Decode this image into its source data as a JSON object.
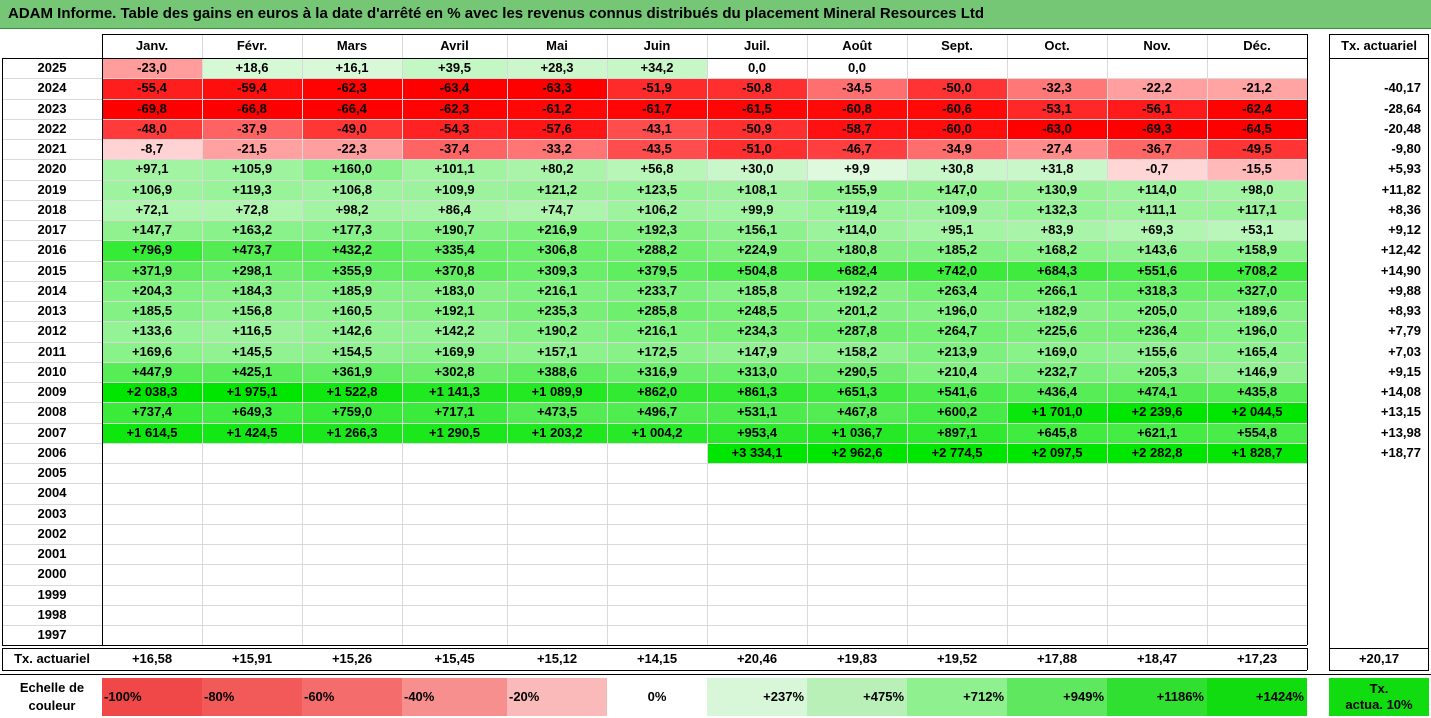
{
  "title": "ADAM Informe. Table des gains en euros à la date d'arrêté en % avec les revenus connus distribués du placement Mineral Resources Ltd",
  "chart_data": {
    "type": "heatmap",
    "title": "ADAM Informe. Table des gains en euros à la date d'arrêté en % avec les revenus connus distribués du placement Mineral Resources Ltd",
    "months": [
      "Janv.",
      "Févr.",
      "Mars",
      "Avril",
      "Mai",
      "Juin",
      "Juil.",
      "Août",
      "Sept.",
      "Oct.",
      "Nov.",
      "Déc."
    ],
    "rate_header": "Tx. actuariel",
    "rows": [
      {
        "year": "2025",
        "values": [
          "-23,0",
          "+18,6",
          "+16,1",
          "+39,5",
          "+28,3",
          "+34,2",
          "0,0",
          "0,0",
          "",
          "",
          "",
          ""
        ],
        "rate": ""
      },
      {
        "year": "2024",
        "values": [
          "-55,4",
          "-59,4",
          "-62,3",
          "-63,4",
          "-63,3",
          "-51,9",
          "-50,8",
          "-34,5",
          "-50,0",
          "-32,3",
          "-22,2",
          "-21,2"
        ],
        "rate": "-40,17"
      },
      {
        "year": "2023",
        "values": [
          "-69,8",
          "-66,8",
          "-66,4",
          "-62,3",
          "-61,2",
          "-61,7",
          "-61,5",
          "-60,8",
          "-60,6",
          "-53,1",
          "-56,1",
          "-62,4"
        ],
        "rate": "-28,64"
      },
      {
        "year": "2022",
        "values": [
          "-48,0",
          "-37,9",
          "-49,0",
          "-54,3",
          "-57,6",
          "-43,1",
          "-50,9",
          "-58,7",
          "-60,0",
          "-63,0",
          "-69,3",
          "-64,5"
        ],
        "rate": "-20,48"
      },
      {
        "year": "2021",
        "values": [
          "-8,7",
          "-21,5",
          "-22,3",
          "-37,4",
          "-33,2",
          "-43,5",
          "-51,0",
          "-46,7",
          "-34,9",
          "-27,4",
          "-36,7",
          "-49,5"
        ],
        "rate": "-9,80"
      },
      {
        "year": "2020",
        "values": [
          "+97,1",
          "+105,9",
          "+160,0",
          "+101,1",
          "+80,2",
          "+56,8",
          "+30,0",
          "+9,9",
          "+30,8",
          "+31,8",
          "-0,7",
          "-15,5"
        ],
        "rate": "+5,93"
      },
      {
        "year": "2019",
        "values": [
          "+106,9",
          "+119,3",
          "+106,8",
          "+109,9",
          "+121,2",
          "+123,5",
          "+108,1",
          "+155,9",
          "+147,0",
          "+130,9",
          "+114,0",
          "+98,0"
        ],
        "rate": "+11,82"
      },
      {
        "year": "2018",
        "values": [
          "+72,1",
          "+72,8",
          "+98,2",
          "+86,4",
          "+74,7",
          "+106,2",
          "+99,9",
          "+119,4",
          "+109,9",
          "+132,3",
          "+111,1",
          "+117,1"
        ],
        "rate": "+8,36"
      },
      {
        "year": "2017",
        "values": [
          "+147,7",
          "+163,2",
          "+177,3",
          "+190,7",
          "+216,9",
          "+192,3",
          "+156,1",
          "+114,0",
          "+95,1",
          "+83,9",
          "+69,3",
          "+53,1"
        ],
        "rate": "+9,12"
      },
      {
        "year": "2016",
        "values": [
          "+796,9",
          "+473,7",
          "+432,2",
          "+335,4",
          "+306,8",
          "+288,2",
          "+224,9",
          "+180,8",
          "+185,2",
          "+168,2",
          "+143,6",
          "+158,9"
        ],
        "rate": "+12,42"
      },
      {
        "year": "2015",
        "values": [
          "+371,9",
          "+298,1",
          "+355,9",
          "+370,8",
          "+309,3",
          "+379,5",
          "+504,8",
          "+682,4",
          "+742,0",
          "+684,3",
          "+551,6",
          "+708,2"
        ],
        "rate": "+14,90"
      },
      {
        "year": "2014",
        "values": [
          "+204,3",
          "+184,3",
          "+185,9",
          "+183,0",
          "+216,1",
          "+233,7",
          "+185,8",
          "+192,2",
          "+263,4",
          "+266,1",
          "+318,3",
          "+327,0"
        ],
        "rate": "+9,88"
      },
      {
        "year": "2013",
        "values": [
          "+185,5",
          "+156,8",
          "+160,5",
          "+192,1",
          "+235,3",
          "+285,8",
          "+248,5",
          "+201,2",
          "+196,0",
          "+182,9",
          "+205,0",
          "+189,6"
        ],
        "rate": "+8,93"
      },
      {
        "year": "2012",
        "values": [
          "+133,6",
          "+116,5",
          "+142,6",
          "+142,2",
          "+190,2",
          "+216,1",
          "+234,3",
          "+287,8",
          "+264,7",
          "+225,6",
          "+236,4",
          "+196,0"
        ],
        "rate": "+7,79"
      },
      {
        "year": "2011",
        "values": [
          "+169,6",
          "+145,5",
          "+154,5",
          "+169,9",
          "+157,1",
          "+172,5",
          "+147,9",
          "+158,2",
          "+213,9",
          "+169,0",
          "+155,6",
          "+165,4"
        ],
        "rate": "+7,03"
      },
      {
        "year": "2010",
        "values": [
          "+447,9",
          "+425,1",
          "+361,9",
          "+302,8",
          "+388,6",
          "+316,9",
          "+313,0",
          "+290,5",
          "+210,4",
          "+232,7",
          "+205,3",
          "+146,9"
        ],
        "rate": "+9,15"
      },
      {
        "year": "2009",
        "values": [
          "+2 038,3",
          "+1 975,1",
          "+1 522,8",
          "+1 141,3",
          "+1 089,9",
          "+862,0",
          "+861,3",
          "+651,3",
          "+541,6",
          "+436,4",
          "+474,1",
          "+435,8"
        ],
        "rate": "+14,08"
      },
      {
        "year": "2008",
        "values": [
          "+737,4",
          "+649,3",
          "+759,0",
          "+717,1",
          "+473,5",
          "+496,7",
          "+531,1",
          "+467,8",
          "+600,2",
          "+1 701,0",
          "+2 239,6",
          "+2 044,5"
        ],
        "rate": "+13,15"
      },
      {
        "year": "2007",
        "values": [
          "+1 614,5",
          "+1 424,5",
          "+1 266,3",
          "+1 290,5",
          "+1 203,2",
          "+1 004,2",
          "+953,4",
          "+1 036,7",
          "+897,1",
          "+645,8",
          "+621,1",
          "+554,8"
        ],
        "rate": "+13,98"
      },
      {
        "year": "2006",
        "values": [
          "",
          "",
          "",
          "",
          "",
          "",
          "+3 334,1",
          "+2 962,6",
          "+2 774,5",
          "+2 097,5",
          "+2 282,8",
          "+1 828,7"
        ],
        "rate": "+18,77"
      },
      {
        "year": "2005",
        "values": [
          "",
          "",
          "",
          "",
          "",
          "",
          "",
          "",
          "",
          "",
          "",
          ""
        ],
        "rate": ""
      },
      {
        "year": "2004",
        "values": [
          "",
          "",
          "",
          "",
          "",
          "",
          "",
          "",
          "",
          "",
          "",
          ""
        ],
        "rate": ""
      },
      {
        "year": "2003",
        "values": [
          "",
          "",
          "",
          "",
          "",
          "",
          "",
          "",
          "",
          "",
          "",
          ""
        ],
        "rate": ""
      },
      {
        "year": "2002",
        "values": [
          "",
          "",
          "",
          "",
          "",
          "",
          "",
          "",
          "",
          "",
          "",
          ""
        ],
        "rate": ""
      },
      {
        "year": "2001",
        "values": [
          "",
          "",
          "",
          "",
          "",
          "",
          "",
          "",
          "",
          "",
          "",
          ""
        ],
        "rate": ""
      },
      {
        "year": "2000",
        "values": [
          "",
          "",
          "",
          "",
          "",
          "",
          "",
          "",
          "",
          "",
          "",
          ""
        ],
        "rate": ""
      },
      {
        "year": "1999",
        "values": [
          "",
          "",
          "",
          "",
          "",
          "",
          "",
          "",
          "",
          "",
          "",
          ""
        ],
        "rate": ""
      },
      {
        "year": "1998",
        "values": [
          "",
          "",
          "",
          "",
          "",
          "",
          "",
          "",
          "",
          "",
          "",
          ""
        ],
        "rate": ""
      },
      {
        "year": "1997",
        "values": [
          "",
          "",
          "",
          "",
          "",
          "",
          "",
          "",
          "",
          "",
          "",
          ""
        ],
        "rate": ""
      }
    ],
    "footer": {
      "label": "Tx. actuariel",
      "values": [
        "+16,58",
        "+15,91",
        "+15,26",
        "+15,45",
        "+15,12",
        "+14,15",
        "+20,46",
        "+19,83",
        "+19,52",
        "+17,88",
        "+18,47",
        "+17,23"
      ],
      "rate": "+20,17"
    },
    "legend": {
      "label_line1": "Echelle de",
      "label_line2": "couleur",
      "steps": [
        "-100%",
        "-80%",
        "-60%",
        "-40%",
        "-20%",
        "0%",
        "+237%",
        "+475%",
        "+712%",
        "+949%",
        "+1186%",
        "+1424%"
      ],
      "rate_line1": "Tx.",
      "rate_line2": "actua. 10%"
    },
    "colors": {
      "neg_strong": "#ff0000",
      "neg_light": "#ffd6d6",
      "pos_light": "#ecfaec",
      "pos_strong": "#00e600",
      "title_bg": "#75c776"
    }
  }
}
